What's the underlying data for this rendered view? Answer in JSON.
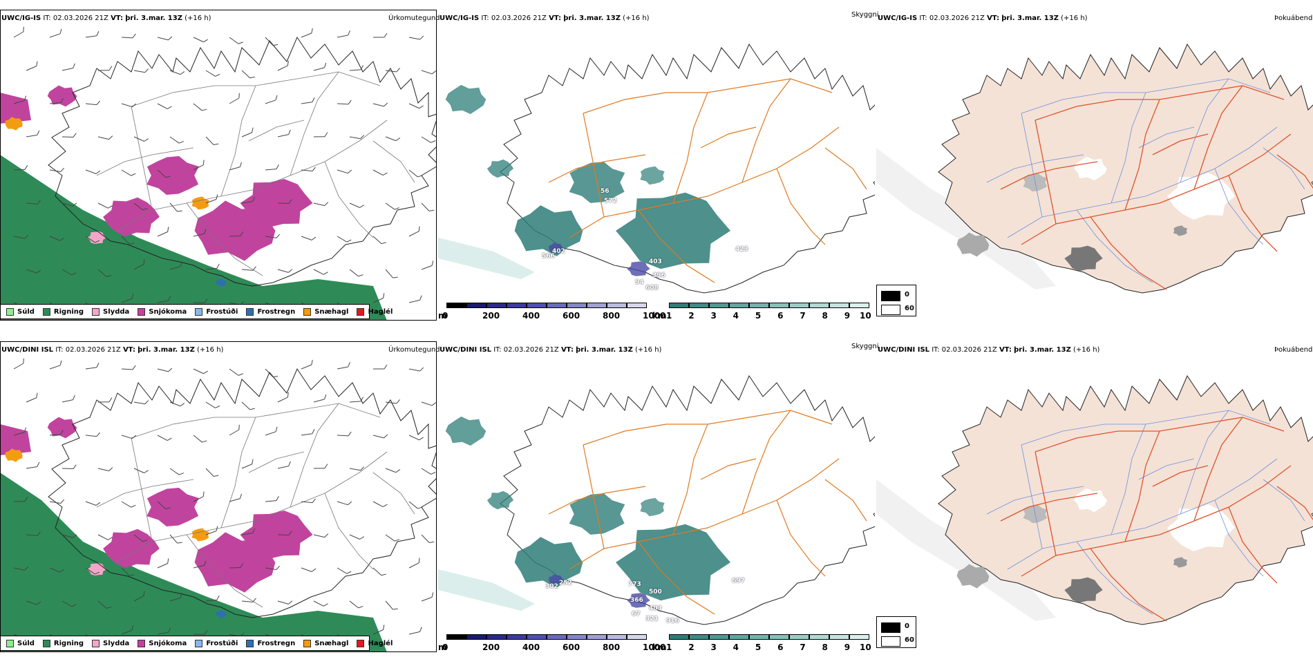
{
  "rows": [
    {
      "model": "UWC/IG-IS",
      "it_label": "IT:",
      "it": "02.03.2026 21Z",
      "vt_label": "VT:",
      "vt": "þri. 3.mar. 13Z",
      "lead": "(+16 h)",
      "labels": [
        {
          "text": "56"
        },
        {
          "text": "572"
        },
        {
          "text": "402"
        },
        {
          "text": "566"
        },
        {
          "text": "403"
        },
        {
          "text": "396"
        },
        {
          "text": "94"
        },
        {
          "text": "608"
        },
        {
          "text": "423"
        }
      ]
    },
    {
      "model": "UWC/DINI ISL",
      "it_label": "IT:",
      "it": "02.03.2026 21Z",
      "vt_label": "VT:",
      "vt": "þri. 3.mar. 13Z",
      "lead": "(+16 h)",
      "labels": [
        {
          "text": "302"
        },
        {
          "text": "252"
        },
        {
          "text": "773"
        },
        {
          "text": "500"
        },
        {
          "text": "366"
        },
        {
          "text": "403"
        },
        {
          "text": "67"
        },
        {
          "text": "321"
        },
        {
          "text": "916"
        },
        {
          "text": "697"
        }
      ]
    }
  ],
  "panel_titles": {
    "precip": "Úrkomutegund",
    "visibility": "Skyggni",
    "fog": "Þokuábendi"
  },
  "precip_legend": [
    {
      "label": "Súld",
      "color": "#90ee90"
    },
    {
      "label": "Rigning",
      "color": "#2e8b57"
    },
    {
      "label": "Slydda",
      "color": "#f4a6c9"
    },
    {
      "label": "Snjókoma",
      "color": "#c0449e"
    },
    {
      "label": "Frostúði",
      "color": "#87b8ea"
    },
    {
      "label": "Frostregn",
      "color": "#2f6fb0"
    },
    {
      "label": "Snæhagl",
      "color": "#f39c12"
    },
    {
      "label": "Haglél",
      "color": "#e31a1c"
    }
  ],
  "colorbar_m": {
    "unit": "m",
    "ticks": [
      "0",
      "200",
      "400",
      "600",
      "800",
      "1000"
    ],
    "colors": [
      "#000000",
      "#1a1a6e",
      "#2a2a8a",
      "#3b3b9e",
      "#5050b0",
      "#6a6abd",
      "#8585c8",
      "#a0a0d3",
      "#bbbbdf",
      "#d6d6ec"
    ]
  },
  "colorbar_km": {
    "unit": "km",
    "ticks": [
      "1",
      "2",
      "3",
      "4",
      "5",
      "6",
      "7",
      "8",
      "9",
      "10"
    ],
    "colors": [
      "#2e7d78",
      "#3f8a85",
      "#519892",
      "#63a59f",
      "#76b2ac",
      "#89bfb9",
      "#9dccc6",
      "#b1d8d3",
      "#c6e4e0",
      "#dbf0ed"
    ]
  },
  "fog_legend": {
    "items": [
      {
        "label": "0",
        "color": "#000000"
      },
      {
        "label": "60",
        "color": "#ffffff"
      }
    ]
  },
  "colors": {
    "rain": "#2e8b57",
    "snow": "#c0449e",
    "sleet": "#f4a6c9",
    "snowgrain": "#f39c12",
    "freezing_rain": "#2f6fb0",
    "vis_low": "#2e7d78",
    "vis_lowest": "#4a4aa8",
    "roads": "#e07a20",
    "fog_land": "#f4e2d6",
    "fog_roads": "#e0522c",
    "fog_rivers": "#6f8fe0"
  }
}
